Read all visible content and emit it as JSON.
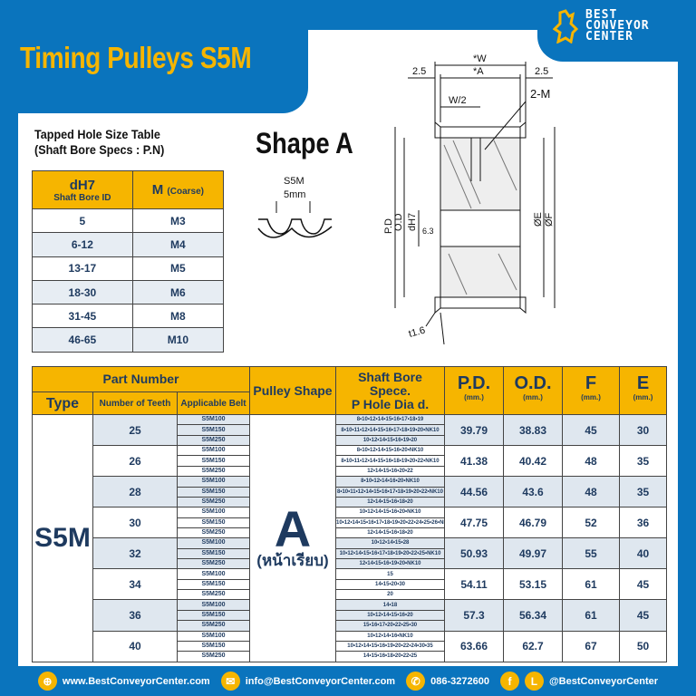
{
  "title": "Timing Pulleys S5M",
  "logo": {
    "line1": "BEST",
    "line2": "CONVEYOR",
    "line3": "CENTER"
  },
  "tapped": {
    "title1": "Tapped Hole Size Table",
    "title2": "(Shaft Bore Specs : P.N)",
    "col1": "dH7",
    "col1_sub": "Shaft Bore ID",
    "col2": "M",
    "col2_sub": "(Coarse)",
    "rows": [
      [
        "5",
        "M3"
      ],
      [
        "6-12",
        "M4"
      ],
      [
        "13-17",
        "M5"
      ],
      [
        "18-30",
        "M6"
      ],
      [
        "31-45",
        "M8"
      ],
      [
        "46-65",
        "M10"
      ]
    ]
  },
  "shape_title": "Shape A",
  "drawing": {
    "belt": "S5M",
    "pitch": "5mm",
    "w": "*W",
    "a": "*A",
    "side_l": "2.5",
    "side_r": "2.5",
    "w2": "W/2",
    "m": "2-M",
    "pd": "P.D",
    "od": "O.D",
    "dh7": "dH7",
    "e": "ØE",
    "f": "ØF",
    "r": "6.3",
    "t": "t1.6"
  },
  "table": {
    "headers": {
      "part_number": "Part Number",
      "type": "Type",
      "teeth": "Number of Teeth",
      "belt": "Applicable Belt",
      "shape": "Pulley Shape",
      "bore1": "Shaft Bore Spece.",
      "bore2": "P Hole Dia d.",
      "pd": "P.D.",
      "od": "O.D.",
      "f": "F",
      "e": "E",
      "unit": "(mm.)"
    },
    "type": "S5M",
    "shape": "A",
    "shape_sub": "(หน้าเรียบ)",
    "rows": [
      {
        "teeth": "25",
        "pd": "39.79",
        "od": "38.83",
        "f": "45",
        "e": "30",
        "belts": [
          "S5M100",
          "S5M150",
          "S5M250"
        ],
        "bores": [
          "8•10•12•14•15•16•17•18•19",
          "8•10•11•12•14•15•16•17•18•19•20•NK10",
          "10•12•14•15•16•19•20"
        ]
      },
      {
        "teeth": "26",
        "pd": "41.38",
        "od": "40.42",
        "f": "48",
        "e": "35",
        "belts": [
          "S5M100",
          "S5M150",
          "S5M250"
        ],
        "bores": [
          "8•10•12•14•15•16•20•NK10",
          "8•10•11•12•14•15•16•18•19•20•22•NK10",
          "12•14•15•16•20•22"
        ]
      },
      {
        "teeth": "28",
        "pd": "44.56",
        "od": "43.6",
        "f": "48",
        "e": "35",
        "belts": [
          "S5M100",
          "S5M150",
          "S5M250"
        ],
        "bores": [
          "8•10•12•14•16•20•NK10",
          "8•10•11•12•14•15•16•17•18•19•20•22•NK10",
          "12•14•15•16•18•20"
        ]
      },
      {
        "teeth": "30",
        "pd": "47.75",
        "od": "46.79",
        "f": "52",
        "e": "36",
        "belts": [
          "S5M100",
          "S5M150",
          "S5M250"
        ],
        "bores": [
          "10•12•14•15•16•20•NK10",
          "10•12•14•15•16•17•18•19•20•22•24•25•26•NK10",
          "12•14•15•16•18•20"
        ]
      },
      {
        "teeth": "32",
        "pd": "50.93",
        "od": "49.97",
        "f": "55",
        "e": "40",
        "belts": [
          "S5M100",
          "S5M150",
          "S5M250"
        ],
        "bores": [
          "10•12•14•15•28",
          "10•12•14•15•16•17•18•19•20•22•25•NK10",
          "12•14•15•16•19•20•NK10"
        ]
      },
      {
        "teeth": "34",
        "pd": "54.11",
        "od": "53.15",
        "f": "61",
        "e": "45",
        "belts": [
          "S5M100",
          "S5M150",
          "S5M250"
        ],
        "bores": [
          "15",
          "14•15•20•30",
          "20"
        ]
      },
      {
        "teeth": "36",
        "pd": "57.3",
        "od": "56.34",
        "f": "61",
        "e": "45",
        "belts": [
          "S5M100",
          "S5M150",
          "S5M250"
        ],
        "bores": [
          "14•18",
          "10•12•14•15•16•20",
          "15•16•17•20•22•25•30"
        ]
      },
      {
        "teeth": "40",
        "pd": "63.66",
        "od": "62.7",
        "f": "67",
        "e": "50",
        "belts": [
          "S5M100",
          "S5M150",
          "S5M250"
        ],
        "bores": [
          "10•12•14•16•NK10",
          "10•12•14•15•16•19•20•22•24•30•35",
          "14•15•16•18•20•22•25"
        ]
      }
    ]
  },
  "footer": {
    "web": "www.BestConveyorCenter.com",
    "email": "info@BestConveyorCenter.com",
    "phone": "086-3272600",
    "social": "@BestConveyorCenter"
  },
  "colors": {
    "brand_blue": "#0a74bd",
    "accent_yellow": "#f6b500",
    "text_navy": "#1e3a5f"
  }
}
